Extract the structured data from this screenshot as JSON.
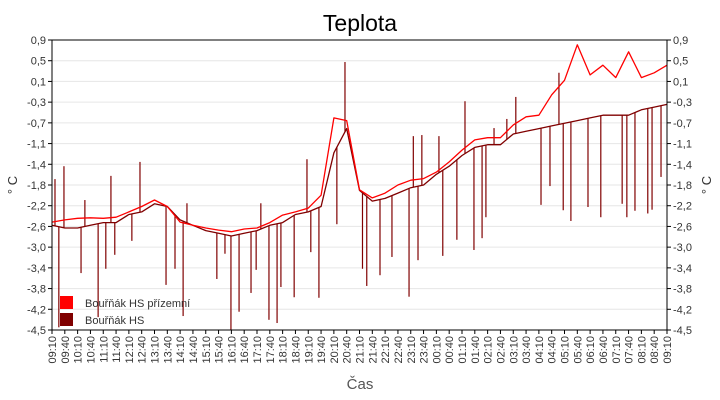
{
  "chart_data": {
    "type": "line",
    "title": "Teplota",
    "xlabel": "Čas",
    "ylabel": "° C",
    "ylim": [
      -4.5,
      0.9
    ],
    "y_tick_labels": [
      "0,9",
      "0,5",
      "0,1",
      "-0,3",
      "-0,7",
      "-1,1",
      "-1,4",
      "-1,8",
      "-2,2",
      "-2,6",
      "-3,0",
      "-3,4",
      "-3,8",
      "-4,2",
      "-4,5"
    ],
    "x_tick_labels": [
      "09:10",
      "09:40",
      "10:10",
      "10:40",
      "11:10",
      "11:40",
      "12:10",
      "12:40",
      "13:10",
      "13:40",
      "14:10",
      "14:40",
      "15:10",
      "15:40",
      "16:10",
      "16:40",
      "17:10",
      "17:40",
      "18:10",
      "18:40",
      "19:10",
      "19:40",
      "20:10",
      "20:40",
      "21:10",
      "21:40",
      "22:10",
      "22:40",
      "23:10",
      "23:40",
      "00:10",
      "00:40",
      "01:10",
      "01:40",
      "02:10",
      "02:40",
      "03:10",
      "03:40",
      "04:10",
      "04:40",
      "05:10",
      "05:40",
      "06:10",
      "06:40",
      "07:10",
      "07:40",
      "08:10",
      "08:40",
      "09:10"
    ],
    "grid": true,
    "legend_position": "bottom-left",
    "series": [
      {
        "name": "Bouřňák HS přízemní",
        "color": "#ff0000",
        "values": [
          -2.49,
          -2.45,
          -2.42,
          -2.41,
          -2.42,
          -2.4,
          -2.3,
          -2.2,
          -2.08,
          -2.2,
          -2.49,
          -2.55,
          -2.6,
          -2.64,
          -2.67,
          -2.62,
          -2.6,
          -2.5,
          -2.36,
          -2.3,
          -2.23,
          -1.99,
          -0.55,
          -0.6,
          -1.89,
          -2.04,
          -1.95,
          -1.8,
          -1.71,
          -1.68,
          -1.56,
          -1.37,
          -1.15,
          -0.96,
          -0.92,
          -0.92,
          -0.68,
          -0.53,
          -0.5,
          -0.12,
          0.15,
          0.81,
          0.25,
          0.43,
          0.2,
          0.68,
          0.2,
          0.29,
          0.43
        ]
      },
      {
        "name": "Bouřňák HS",
        "color": "#800000",
        "values": [
          -2.55,
          -2.6,
          -2.6,
          -2.55,
          -2.5,
          -2.5,
          -2.35,
          -2.3,
          -2.15,
          -2.2,
          -2.45,
          -2.55,
          -2.65,
          -2.7,
          -2.75,
          -2.7,
          -2.65,
          -2.55,
          -2.5,
          -2.35,
          -2.3,
          -2.2,
          -1.2,
          -0.75,
          -1.9,
          -2.1,
          -2.05,
          -1.95,
          -1.85,
          -1.8,
          -1.6,
          -1.45,
          -1.25,
          -1.1,
          -1.05,
          -1.05,
          -0.85,
          -0.8,
          -0.75,
          -0.7,
          -0.65,
          -0.6,
          -0.55,
          -0.5,
          -0.5,
          -0.5,
          -0.4,
          -0.35,
          -0.3
        ],
        "spikes": [
          [
            "09:17",
            -1.69
          ],
          [
            "09:26",
            -4.45
          ],
          [
            "09:38",
            -1.45
          ],
          [
            "10:18",
            -3.44
          ],
          [
            "10:27",
            -2.08
          ],
          [
            "10:58",
            -4.26
          ],
          [
            "11:16",
            -3.36
          ],
          [
            "11:28",
            -1.63
          ],
          [
            "11:37",
            -3.1
          ],
          [
            "12:17",
            -2.84
          ],
          [
            "12:36",
            -1.37
          ],
          [
            "13:37",
            -3.66
          ],
          [
            "13:58",
            -3.36
          ],
          [
            "14:17",
            -4.24
          ],
          [
            "14:26",
            -2.14
          ],
          [
            "15:36",
            -3.55
          ],
          [
            "15:55",
            -3.08
          ],
          [
            "16:09",
            -4.5
          ],
          [
            "16:28",
            -4.16
          ],
          [
            "16:56",
            -3.81
          ],
          [
            "17:08",
            -3.38
          ],
          [
            "17:19",
            -2.14
          ],
          [
            "17:38",
            -4.31
          ],
          [
            "17:57",
            -4.37
          ],
          [
            "18:06",
            -3.7
          ],
          [
            "18:37",
            -3.89
          ],
          [
            "19:07",
            -1.32
          ],
          [
            "19:16",
            -3.05
          ],
          [
            "19:35",
            -3.9
          ],
          [
            "20:17",
            -2.53
          ],
          [
            "20:36",
            0.49
          ],
          [
            "21:17",
            -3.36
          ],
          [
            "21:27",
            -3.68
          ],
          [
            "21:58",
            -3.48
          ],
          [
            "22:26",
            -3.14
          ],
          [
            "23:06",
            -3.88
          ],
          [
            "23:16",
            -0.89
          ],
          [
            "23:27",
            -3.2
          ],
          [
            "23:36",
            -0.87
          ],
          [
            "00:16",
            -0.89
          ],
          [
            "00:25",
            -3.12
          ],
          [
            "00:58",
            -2.82
          ],
          [
            "01:17",
            -0.24
          ],
          [
            "01:38",
            -3.01
          ],
          [
            "01:57",
            -2.79
          ],
          [
            "02:06",
            -2.4
          ],
          [
            "02:25",
            -0.74
          ],
          [
            "02:55",
            -0.57
          ],
          [
            "03:16",
            -0.16
          ],
          [
            "04:15",
            -2.17
          ],
          [
            "04:36",
            -1.82
          ],
          [
            "04:57",
            0.29
          ],
          [
            "05:07",
            -2.27
          ],
          [
            "05:25",
            -2.47
          ],
          [
            "06:05",
            -2.21
          ],
          [
            "06:35",
            -2.4
          ],
          [
            "07:25",
            -2.15
          ],
          [
            "07:36",
            -2.4
          ],
          [
            "07:55",
            -2.28
          ],
          [
            "08:25",
            -2.33
          ],
          [
            "08:35",
            -2.26
          ],
          [
            "08:56",
            -1.65
          ]
        ]
      }
    ]
  }
}
